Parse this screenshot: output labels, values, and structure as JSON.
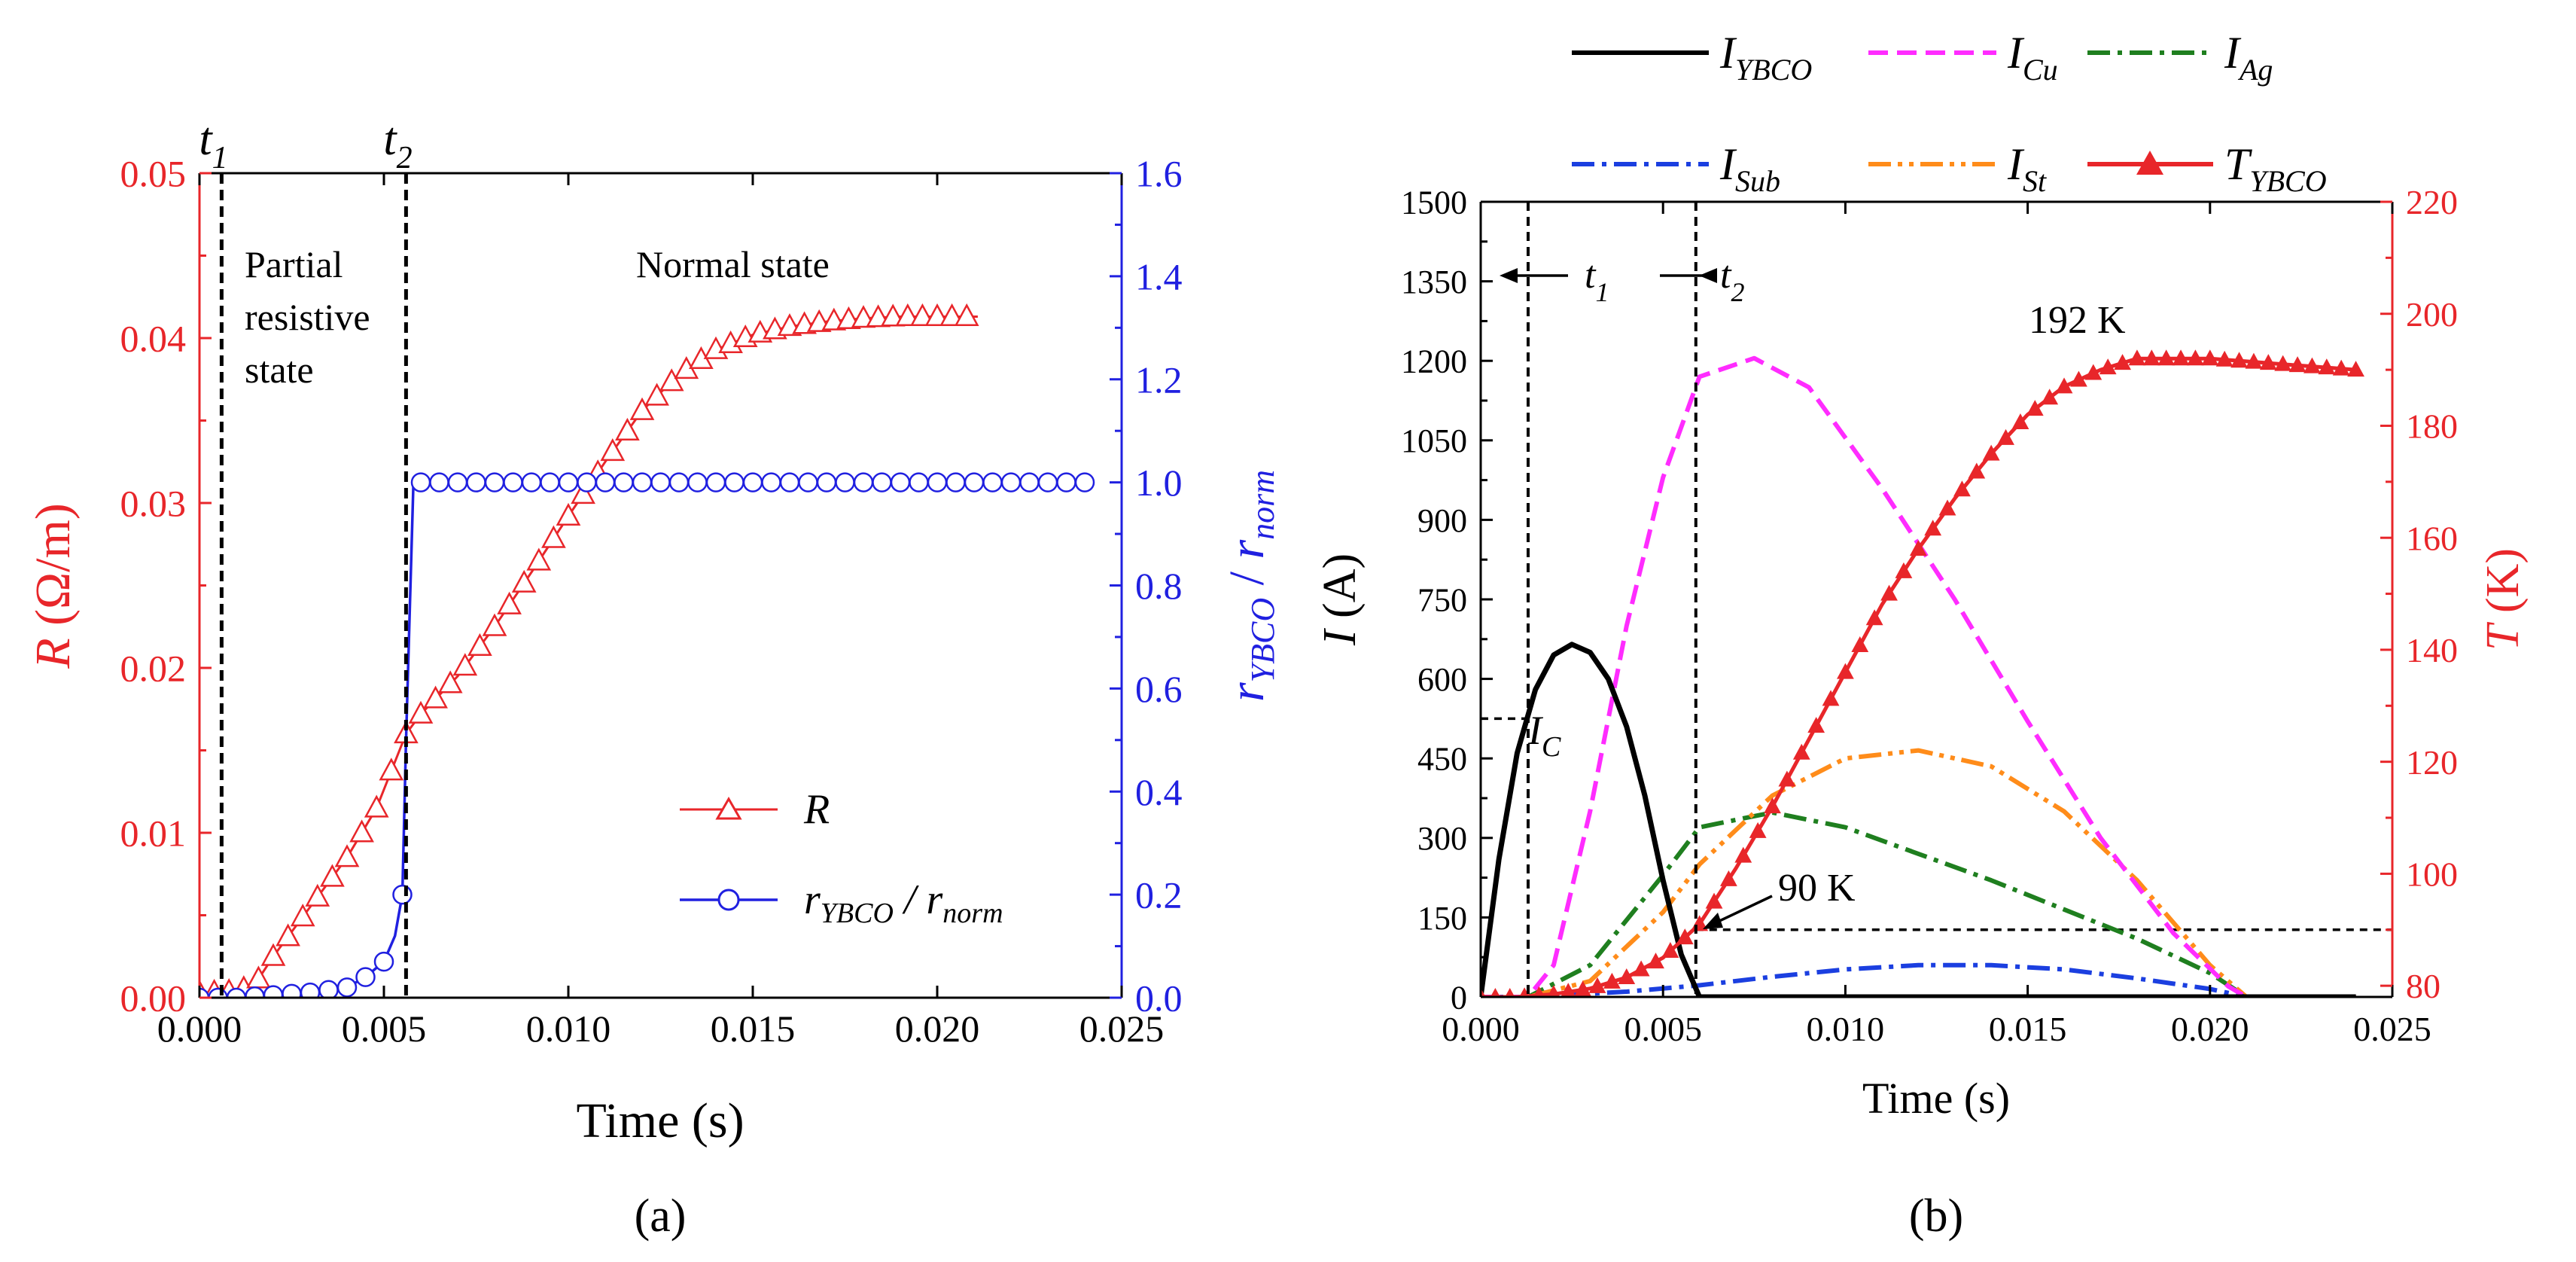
{
  "figure": {
    "panel_a_label": "(a)",
    "panel_b_label": "(b)"
  },
  "chart_data": [
    {
      "id": "a",
      "type": "line",
      "xlabel": "Time (s)",
      "ylabel_left": {
        "italic": "R",
        "rest": " (Ω/m)"
      },
      "ylabel_right": {
        "a": "r",
        "a_sub": "YBCO",
        "sep": " / ",
        "b": "r",
        "b_sub": "norm"
      },
      "xlim": [
        0,
        0.025
      ],
      "ylim_left": [
        0,
        0.05
      ],
      "ylim_right": [
        0,
        1.6
      ],
      "x_ticks": [
        "0.000",
        "0.005",
        "0.010",
        "0.015",
        "0.020",
        "0.025"
      ],
      "y_left_ticks": [
        "0.00",
        "0.01",
        "0.02",
        "0.03",
        "0.04",
        "0.05"
      ],
      "y_right_ticks": [
        "0.0",
        "0.2",
        "0.4",
        "0.6",
        "0.8",
        "1.0",
        "1.2",
        "1.4",
        "1.6"
      ],
      "colors": {
        "left_axis": "#e8262a",
        "right_axis": "#2020e0",
        "R": "#e8262a",
        "ratio": "#2020e0"
      },
      "vlines": [
        {
          "name": "t1",
          "x": 0.0006,
          "label": "t",
          "sub": "1"
        },
        {
          "name": "t2",
          "x": 0.0056,
          "label": "t",
          "sub": "2"
        }
      ],
      "annotations": [
        {
          "name": "partial-state",
          "lines": [
            "Partial",
            "resistive",
            "state"
          ]
        },
        {
          "name": "normal-state",
          "lines": [
            "Normal state"
          ]
        }
      ],
      "legend": [
        {
          "label": "R",
          "color": "#e8262a",
          "marker": "triangle"
        },
        {
          "label": "r",
          "sub1": "YBCO",
          "sep": " / r",
          "sub2": "norm",
          "color": "#2020e0",
          "marker": "circle"
        }
      ],
      "series": [
        {
          "name": "R",
          "axis": "left",
          "x": [
            0.0,
            0.001,
            0.0015,
            0.002,
            0.003,
            0.004,
            0.0048,
            0.0056,
            0.006,
            0.007,
            0.008,
            0.009,
            0.01,
            0.011,
            0.012,
            0.013,
            0.014,
            0.015,
            0.016,
            0.017,
            0.018,
            0.019,
            0.02,
            0.0211
          ],
          "y": [
            0.0003,
            0.0004,
            0.0008,
            0.0025,
            0.0055,
            0.0085,
            0.0115,
            0.016,
            0.0172,
            0.0195,
            0.0225,
            0.0258,
            0.0292,
            0.0325,
            0.0356,
            0.0378,
            0.0393,
            0.0402,
            0.0407,
            0.041,
            0.0412,
            0.0413,
            0.0413,
            0.0413
          ]
        },
        {
          "name": "r_YBCO / r_norm",
          "axis": "right",
          "x": [
            0.0,
            0.001,
            0.002,
            0.003,
            0.004,
            0.0045,
            0.005,
            0.0053,
            0.0055,
            0.0056,
            0.0058,
            0.006,
            0.008,
            0.01,
            0.012,
            0.014,
            0.016,
            0.018,
            0.02,
            0.022,
            0.024
          ],
          "y": [
            0.0,
            0.0,
            0.005,
            0.01,
            0.02,
            0.04,
            0.07,
            0.12,
            0.2,
            0.5,
            1.0,
            1.0,
            1.0,
            1.0,
            1.0,
            1.0,
            1.0,
            1.0,
            1.0,
            1.0,
            1.0
          ]
        }
      ]
    },
    {
      "id": "b",
      "type": "line",
      "xlabel": "Time (s)",
      "ylabel_left": {
        "italic": "I",
        "rest": " (A)"
      },
      "ylabel_right": {
        "italic": "T",
        "rest": " (K)"
      },
      "xlim": [
        0,
        0.025
      ],
      "ylim_left": [
        0,
        1500
      ],
      "ylim_right": [
        78,
        220
      ],
      "x_ticks": [
        "0.000",
        "0.005",
        "0.010",
        "0.015",
        "0.020",
        "0.025"
      ],
      "y_left_ticks": [
        "0",
        "150",
        "300",
        "450",
        "600",
        "750",
        "900",
        "1050",
        "1200",
        "1350",
        "1500"
      ],
      "y_right_ticks": [
        "80",
        "100",
        "120",
        "140",
        "160",
        "180",
        "200",
        "220"
      ],
      "colors": {
        "left_axis": "#000000",
        "right_axis": "#e8262a"
      },
      "vlines": [
        {
          "name": "t1",
          "x": 0.0013,
          "label": "t",
          "sub": "1"
        },
        {
          "name": "t2",
          "x": 0.0059,
          "label": "t",
          "sub": "2"
        }
      ],
      "hlines": [
        {
          "name": "ic-level",
          "value": 525,
          "label": "I",
          "sub": "C"
        },
        {
          "name": "t90-level",
          "value_right": 90,
          "label": "90 K"
        }
      ],
      "peak_label": "192 K",
      "legend": [
        {
          "label": "I",
          "sub": "YBCO",
          "color": "#000000",
          "style": "solid"
        },
        {
          "label": "I",
          "sub": "Cu",
          "color": "#ff2cff",
          "style": "dash"
        },
        {
          "label": "I",
          "sub": "Ag",
          "color": "#1f7f1f",
          "style": "dashdot"
        },
        {
          "label": "I",
          "sub": "Sub",
          "color": "#1b3fe0",
          "style": "dashdot"
        },
        {
          "label": "I",
          "sub": "St",
          "color": "#ff8c1a",
          "style": "dashdotdot"
        },
        {
          "label": "T",
          "sub": "YBCO",
          "color": "#e8262a",
          "style": "solid-triangle"
        }
      ],
      "series": [
        {
          "name": "I_YBCO",
          "axis": "left",
          "x": [
            0.0,
            0.0005,
            0.001,
            0.0015,
            0.002,
            0.0025,
            0.003,
            0.0035,
            0.004,
            0.0045,
            0.005,
            0.0055,
            0.006,
            0.024
          ],
          "y": [
            0,
            260,
            460,
            580,
            645,
            665,
            650,
            600,
            510,
            380,
            220,
            80,
            0,
            0
          ]
        },
        {
          "name": "I_Cu",
          "axis": "left",
          "x": [
            0.0,
            0.0013,
            0.002,
            0.003,
            0.004,
            0.005,
            0.006,
            0.0075,
            0.009,
            0.011,
            0.013,
            0.015,
            0.017,
            0.019,
            0.0205,
            0.021,
            0.024
          ],
          "y": [
            0,
            0,
            60,
            350,
            700,
            980,
            1170,
            1205,
            1150,
            960,
            750,
            520,
            300,
            120,
            20,
            0,
            0
          ]
        },
        {
          "name": "I_Ag",
          "axis": "left",
          "x": [
            0.0,
            0.0013,
            0.003,
            0.005,
            0.006,
            0.008,
            0.01,
            0.012,
            0.014,
            0.016,
            0.018,
            0.02,
            0.021,
            0.024
          ],
          "y": [
            0,
            0,
            60,
            230,
            320,
            348,
            320,
            270,
            220,
            165,
            110,
            45,
            0,
            0
          ]
        },
        {
          "name": "I_Sub",
          "axis": "left",
          "x": [
            0.0,
            0.0013,
            0.004,
            0.006,
            0.008,
            0.01,
            0.012,
            0.014,
            0.016,
            0.018,
            0.02,
            0.021,
            0.024
          ],
          "y": [
            0,
            0,
            10,
            22,
            38,
            52,
            60,
            60,
            52,
            35,
            15,
            0,
            0
          ]
        },
        {
          "name": "I_St",
          "axis": "left",
          "x": [
            0.0,
            0.0013,
            0.003,
            0.005,
            0.006,
            0.008,
            0.01,
            0.012,
            0.014,
            0.016,
            0.018,
            0.02,
            0.021,
            0.024
          ],
          "y": [
            0,
            0,
            30,
            160,
            250,
            380,
            450,
            465,
            435,
            350,
            220,
            60,
            0,
            0
          ]
        },
        {
          "name": "T_YBCO",
          "axis": "right",
          "x": [
            0.0,
            0.001,
            0.002,
            0.003,
            0.004,
            0.005,
            0.006,
            0.007,
            0.008,
            0.009,
            0.01,
            0.011,
            0.012,
            0.013,
            0.014,
            0.015,
            0.016,
            0.017,
            0.018,
            0.019,
            0.02,
            0.021,
            0.022,
            0.023,
            0.024
          ],
          "y": [
            78,
            78,
            78.5,
            79.5,
            81.5,
            85,
            91,
            101,
            112,
            124,
            136,
            148,
            158,
            167,
            175,
            182,
            187,
            190,
            192,
            192,
            192,
            191.5,
            191,
            190.5,
            190
          ]
        }
      ]
    }
  ]
}
